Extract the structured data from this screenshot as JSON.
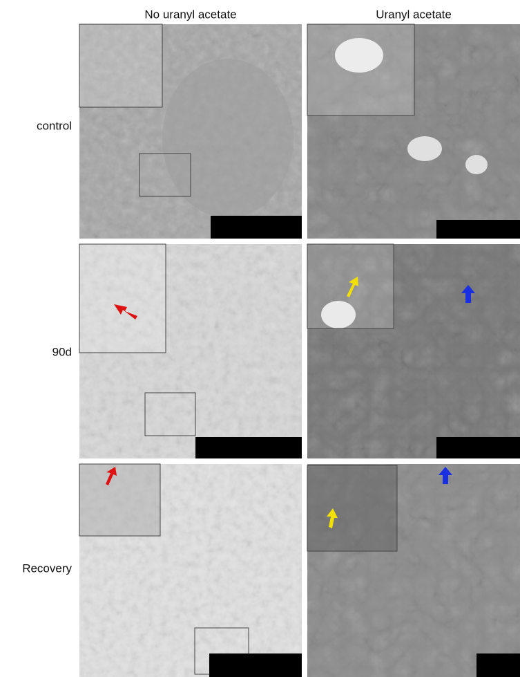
{
  "columns": [
    "No uranyl acetate",
    "Uranyl acetate"
  ],
  "rows": [
    "control",
    "90d",
    "Recovery"
  ]
}
